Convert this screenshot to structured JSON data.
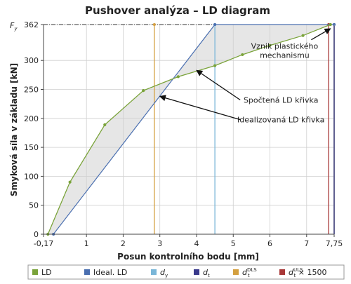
{
  "chart_data": {
    "type": "line",
    "title": "Pushover analýza – LD diagram",
    "xlabel": "Posun kontrolního bodu [mm]",
    "ylabel": "Smyková síla v základu [kN]",
    "xlim": [
      -0.17,
      7.75
    ],
    "ylim": [
      0,
      362
    ],
    "x_ticks": [
      "-0,17",
      "1",
      "2",
      "3",
      "4",
      "5",
      "6",
      "7",
      "7,75"
    ],
    "x_tick_values": [
      -0.17,
      1,
      2,
      3,
      4,
      5,
      6,
      7,
      7.75
    ],
    "y_ticks": [
      "0",
      "50",
      "100",
      "150",
      "200",
      "250",
      "300",
      "362"
    ],
    "y_tick_values": [
      0,
      50,
      100,
      150,
      200,
      250,
      300,
      362
    ],
    "y_top_label": "F",
    "y_top_label_sub": "y",
    "grid": true,
    "legend_position": "bottom",
    "series": [
      {
        "name": "LD",
        "color": "#7aa33a",
        "x": [
          -0.05,
          0.55,
          1.5,
          2.55,
          3.5,
          4.5,
          5.25,
          6.0,
          6.9,
          7.65
        ],
        "y": [
          0,
          90,
          189,
          248,
          272,
          291,
          310,
          326,
          343,
          362
        ]
      },
      {
        "name": "Ideal. LD",
        "color": "#4a6fb0",
        "x": [
          0.1,
          4.5,
          7.75
        ],
        "y": [
          0,
          362,
          362
        ]
      }
    ],
    "vertical_lines": [
      {
        "name": "d_y",
        "label": "d",
        "sub": "y",
        "sup": "",
        "x": 4.5,
        "color": "#7ab6d8"
      },
      {
        "name": "d_t",
        "label": "d",
        "sub": "t",
        "sup": "",
        "x": 7.75,
        "color": "#3a3a8c"
      },
      {
        "name": "d_t_DLS",
        "label": "d",
        "sub": "t",
        "sup": "DLS",
        "x": 2.85,
        "color": "#d4a040"
      },
      {
        "name": "d_t_ULS",
        "label": "d",
        "sub": "t",
        "sup": "ULS",
        "suffix": " × 1500",
        "x": 7.6,
        "color": "#a83838"
      }
    ],
    "annotations": [
      {
        "text_lines": [
          "Vznik plastického",
          "mechanismu"
        ],
        "text_x": 6.4,
        "text_y": 320,
        "arrow_to_x": 7.65,
        "arrow_to_y": 355
      },
      {
        "text_lines": [
          "Spočtená LD křivka"
        ],
        "text_x": 6.3,
        "text_y": 227,
        "arrow_to_x": 4.0,
        "arrow_to_y": 283
      },
      {
        "text_lines": [
          "Idealizovaná LD křivka"
        ],
        "text_x": 6.3,
        "text_y": 193,
        "arrow_to_x": 3.0,
        "arrow_to_y": 238
      }
    ],
    "legend": [
      {
        "label": "LD",
        "sub": "",
        "sup": "",
        "suffix": "",
        "color": "#7aa33a"
      },
      {
        "label": "Ideal. LD",
        "sub": "",
        "sup": "",
        "suffix": "",
        "color": "#4a6fb0"
      },
      {
        "label": "d",
        "sub": "y",
        "sup": "",
        "suffix": "",
        "color": "#7ab6d8"
      },
      {
        "label": "d",
        "sub": "t",
        "sup": "",
        "suffix": "",
        "color": "#3a3a8c"
      },
      {
        "label": "d",
        "sub": "t",
        "sup": "DLS",
        "suffix": "",
        "color": "#d4a040"
      },
      {
        "label": "d",
        "sub": "t",
        "sup": "ULS",
        "suffix": " × 1500",
        "color": "#a83838"
      }
    ],
    "fill_between": {
      "color": "#e6e6e6"
    },
    "top_dashed_line_y": 362
  }
}
